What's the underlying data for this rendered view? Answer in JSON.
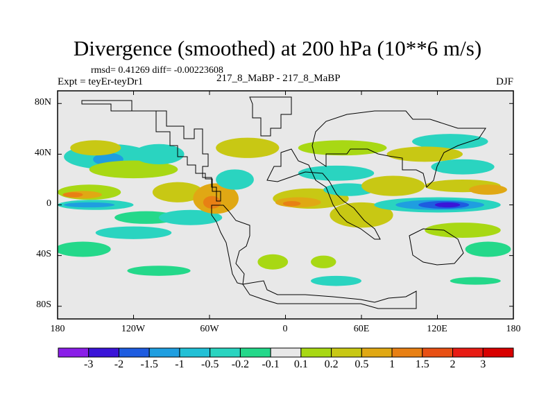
{
  "title": "Divergence (smoothed) at 200 hPa (10**6 m/s)",
  "stats": "rmsd= 0.41269 diff= -0.00223608",
  "experiment": "Expt = teyEr-teyDr1",
  "run_label": "217_8_MaBP - 217_8_MaBP",
  "season": "DJF",
  "lat_labels": [
    "80N",
    "40N",
    "0",
    "40S",
    "80S"
  ],
  "lon_labels": [
    "180",
    "120W",
    "60W",
    "0",
    "60E",
    "120E",
    "180"
  ],
  "colorbar": {
    "labels": [
      "-3",
      "-2",
      "-1.5",
      "-1",
      "-0.5",
      "-0.2",
      "-0.1",
      "0.1",
      "0.2",
      "0.5",
      "1",
      "1.5",
      "2",
      "3"
    ],
    "colors": [
      "#8a1ee8",
      "#3a14d8",
      "#1e5ce0",
      "#1f9ee0",
      "#22c0d6",
      "#2ad4c0",
      "#24d88a",
      "#e8e8e8",
      "#a8d814",
      "#c8c814",
      "#e0a814",
      "#e88014",
      "#e85014",
      "#e81c14",
      "#d80000"
    ]
  },
  "fields": {
    "background": "#e8e8e8",
    "features": [
      {
        "type": "positive",
        "color": "#a8d814",
        "lon": -155,
        "lat": 10,
        "rx": 25,
        "ry": 6
      },
      {
        "type": "positive",
        "color": "#e0a814",
        "lon": -160,
        "lat": 8,
        "rx": 15,
        "ry": 3
      },
      {
        "type": "positive",
        "color": "#e88014",
        "lon": -168,
        "lat": 8,
        "rx": 8,
        "ry": 2
      },
      {
        "type": "negative",
        "color": "#2ad4c0",
        "lon": -150,
        "lat": 0,
        "rx": 30,
        "ry": 4
      },
      {
        "type": "negative",
        "color": "#1f9ee0",
        "lon": -155,
        "lat": 0,
        "rx": 20,
        "ry": 2
      },
      {
        "type": "negative",
        "color": "#2ad4c0",
        "lon": -140,
        "lat": 38,
        "rx": 35,
        "ry": 10
      },
      {
        "type": "negative",
        "color": "#1f9ee0",
        "lon": -140,
        "lat": 36,
        "rx": 12,
        "ry": 5
      },
      {
        "type": "positive",
        "color": "#a8d814",
        "lon": -120,
        "lat": 28,
        "rx": 35,
        "ry": 7
      },
      {
        "type": "positive",
        "color": "#c8c814",
        "lon": -150,
        "lat": 45,
        "rx": 20,
        "ry": 6
      },
      {
        "type": "negative",
        "color": "#2ad4c0",
        "lon": -100,
        "lat": 40,
        "rx": 20,
        "ry": 8
      },
      {
        "type": "negative",
        "color": "#24d88a",
        "lon": -110,
        "lat": -10,
        "rx": 25,
        "ry": 5
      },
      {
        "type": "negative",
        "color": "#2ad4c0",
        "lon": -75,
        "lat": -10,
        "rx": 25,
        "ry": 6
      },
      {
        "type": "positive",
        "color": "#c8c814",
        "lon": -85,
        "lat": 10,
        "rx": 20,
        "ry": 8
      },
      {
        "type": "positive",
        "color": "#e0a814",
        "lon": -55,
        "lat": 5,
        "rx": 18,
        "ry": 12
      },
      {
        "type": "positive",
        "color": "#e88014",
        "lon": -58,
        "lat": 2,
        "rx": 7,
        "ry": 5
      },
      {
        "type": "negative",
        "color": "#2ad4c0",
        "lon": -40,
        "lat": 20,
        "rx": 15,
        "ry": 8
      },
      {
        "type": "positive",
        "color": "#c8c814",
        "lon": -30,
        "lat": 45,
        "rx": 25,
        "ry": 8
      },
      {
        "type": "negative",
        "color": "#2ad4c0",
        "lon": -120,
        "lat": -22,
        "rx": 30,
        "ry": 5
      },
      {
        "type": "negative",
        "color": "#24d88a",
        "lon": -160,
        "lat": -35,
        "rx": 22,
        "ry": 6
      },
      {
        "type": "positive",
        "color": "#c8c814",
        "lon": 20,
        "lat": 5,
        "rx": 30,
        "ry": 8
      },
      {
        "type": "positive",
        "color": "#e0a814",
        "lon": 10,
        "lat": 2,
        "rx": 18,
        "ry": 4
      },
      {
        "type": "positive",
        "color": "#e88014",
        "lon": 5,
        "lat": 1,
        "rx": 7,
        "ry": 2
      },
      {
        "type": "negative",
        "color": "#2ad4c0",
        "lon": 40,
        "lat": 25,
        "rx": 30,
        "ry": 6
      },
      {
        "type": "positive",
        "color": "#a8d814",
        "lon": 45,
        "lat": 45,
        "rx": 35,
        "ry": 6
      },
      {
        "type": "positive",
        "color": "#c8c814",
        "lon": 60,
        "lat": -8,
        "rx": 25,
        "ry": 10
      },
      {
        "type": "negative",
        "color": "#2ad4c0",
        "lon": 50,
        "lat": 12,
        "rx": 20,
        "ry": 5
      },
      {
        "type": "positive",
        "color": "#c8c814",
        "lon": 85,
        "lat": 15,
        "rx": 25,
        "ry": 8
      },
      {
        "type": "negative",
        "color": "#2ad4c0",
        "lon": 120,
        "lat": 0,
        "rx": 50,
        "ry": 6
      },
      {
        "type": "negative",
        "color": "#1f9ee0",
        "lon": 122,
        "lat": 0,
        "rx": 35,
        "ry": 4
      },
      {
        "type": "negative",
        "color": "#1e5ce0",
        "lon": 125,
        "lat": 0,
        "rx": 20,
        "ry": 3
      },
      {
        "type": "negative",
        "color": "#3a14d8",
        "lon": 128,
        "lat": 0,
        "rx": 10,
        "ry": 2
      },
      {
        "type": "positive",
        "color": "#c8c814",
        "lon": 140,
        "lat": 15,
        "rx": 30,
        "ry": 5
      },
      {
        "type": "positive",
        "color": "#e0a814",
        "lon": 160,
        "lat": 12,
        "rx": 15,
        "ry": 4
      },
      {
        "type": "negative",
        "color": "#2ad4c0",
        "lon": 140,
        "lat": 30,
        "rx": 25,
        "ry": 6
      },
      {
        "type": "negative",
        "color": "#2ad4c0",
        "lon": 130,
        "lat": 50,
        "rx": 30,
        "ry": 6
      },
      {
        "type": "positive",
        "color": "#c8c814",
        "lon": 110,
        "lat": 40,
        "rx": 30,
        "ry": 6
      },
      {
        "type": "positive",
        "color": "#a8d814",
        "lon": 140,
        "lat": -20,
        "rx": 30,
        "ry": 6
      },
      {
        "type": "negative",
        "color": "#24d88a",
        "lon": 160,
        "lat": -35,
        "rx": 18,
        "ry": 6
      },
      {
        "type": "positive",
        "color": "#a8d814",
        "lon": -10,
        "lat": -45,
        "rx": 12,
        "ry": 6
      },
      {
        "type": "positive",
        "color": "#a8d814",
        "lon": 30,
        "lat": -45,
        "rx": 10,
        "ry": 5
      },
      {
        "type": "negative",
        "color": "#24d88a",
        "lon": -100,
        "lat": -52,
        "rx": 25,
        "ry": 4
      },
      {
        "type": "negative",
        "color": "#2ad4c0",
        "lon": 40,
        "lat": -60,
        "rx": 20,
        "ry": 4
      },
      {
        "type": "negative",
        "color": "#24d88a",
        "lon": 150,
        "lat": -60,
        "rx": 20,
        "ry": 3
      }
    ]
  }
}
